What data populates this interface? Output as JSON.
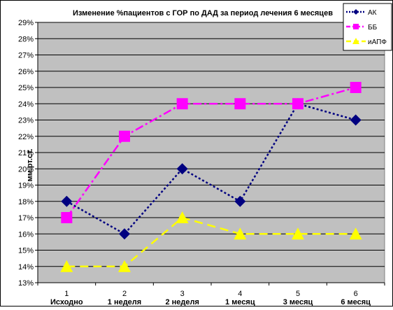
{
  "chart_data": {
    "type": "line",
    "title": "Изменение %пациентов с ГОР по ДАД за период лечения 6 месяцев",
    "ylabel": "мм.рт.ст.",
    "xlabel": "",
    "x": [
      "1",
      "2",
      "3",
      "4",
      "5",
      "6"
    ],
    "categories": [
      "Исходно",
      "1 неделя",
      "2 неделя",
      "1 месяц",
      "3 месяц",
      "6 месяц"
    ],
    "ylim": [
      13,
      29
    ],
    "ytick_labels": [
      "13%",
      "14%",
      "15%",
      "16%",
      "17%",
      "18%",
      "19%",
      "20%",
      "21%",
      "22%",
      "23%",
      "24%",
      "25%",
      "26%",
      "27%",
      "28%",
      "29%"
    ],
    "grid": true,
    "legend_position": "top-right",
    "series": [
      {
        "name": "АК",
        "values": [
          18,
          16,
          20,
          18,
          24,
          23
        ],
        "color": "#000080",
        "marker": "diamond",
        "line": "dotted"
      },
      {
        "name": "ББ",
        "values": [
          17,
          22,
          24,
          24,
          24,
          25
        ],
        "color": "#FF00FF",
        "marker": "square",
        "line": "dashdot"
      },
      {
        "name": "иАПФ",
        "values": [
          14,
          14,
          17,
          16,
          16,
          16
        ],
        "color": "#FFFF00",
        "marker": "triangle",
        "line": "dashed"
      }
    ],
    "colors": {
      "plot_background": "#C0C0C0",
      "gridline": "#000000"
    }
  }
}
